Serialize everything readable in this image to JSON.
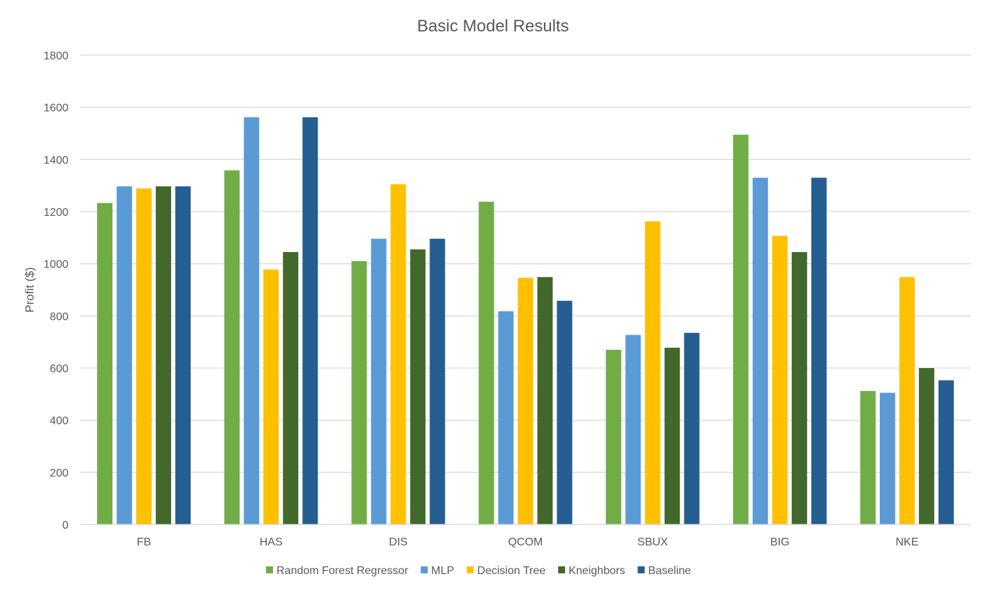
{
  "chart_data": {
    "type": "bar",
    "title": "Basic Model Results",
    "xlabel": "",
    "ylabel": "Profit ($)",
    "ylim": [
      0,
      1800
    ],
    "yticks": [
      0,
      200,
      400,
      600,
      800,
      1000,
      1200,
      1400,
      1600,
      1800
    ],
    "grid": true,
    "legend_position": "bottom",
    "categories": [
      "FB",
      "HAS",
      "DIS",
      "QCOM",
      "SBUX",
      "BIG",
      "NKE"
    ],
    "series": [
      {
        "name": "Random Forest Regressor",
        "color": "#70AD47",
        "values": [
          1233,
          1358,
          1010,
          1238,
          670,
          1495,
          512
        ]
      },
      {
        "name": "MLP",
        "color": "#5B9BD5",
        "values": [
          1297,
          1562,
          1096,
          818,
          727,
          1330,
          505
        ]
      },
      {
        "name": "Decision Tree",
        "color": "#FFC000",
        "values": [
          1289,
          978,
          1305,
          946,
          1163,
          1107,
          949
        ]
      },
      {
        "name": "Kneighbors",
        "color": "#43682B",
        "values": [
          1297,
          1045,
          1055,
          949,
          678,
          1045,
          600
        ]
      },
      {
        "name": "Baseline",
        "color": "#255E91",
        "values": [
          1297,
          1562,
          1096,
          858,
          735,
          1330,
          553
        ]
      }
    ]
  }
}
